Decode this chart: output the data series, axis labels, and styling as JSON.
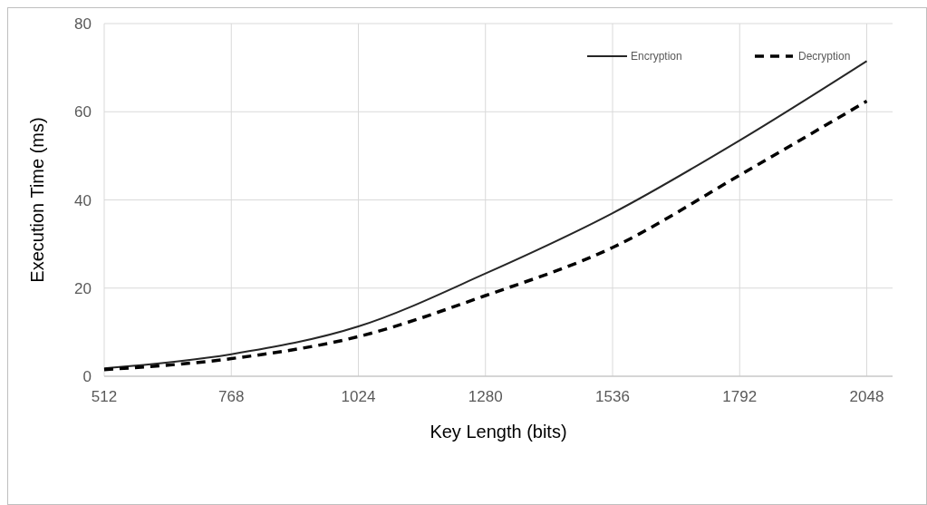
{
  "chart_data": {
    "type": "line",
    "xlabel": "Key Length (bits)",
    "ylabel": "Execution Time (ms)",
    "x": [
      512,
      768,
      1024,
      1280,
      1536,
      1792,
      2048
    ],
    "xlim": [
      512,
      2100
    ],
    "xticks": [
      512,
      768,
      1024,
      1280,
      1536,
      1792,
      2048
    ],
    "ylim": [
      0,
      80
    ],
    "yticks": [
      0,
      20,
      40,
      60,
      80
    ],
    "grid": true,
    "legend": "top right",
    "marker": "none",
    "series": [
      {
        "name": "Encryption",
        "color": "#262626",
        "line_style": "solid",
        "values": [
          1.8,
          5,
          11.3,
          23.3,
          37,
          53.5,
          71.5
        ]
      },
      {
        "name": "Decryption",
        "color": "#000000",
        "line_style": "dashed",
        "values": [
          1.5,
          4,
          9,
          18.3,
          29.2,
          45.6,
          62.4
        ]
      }
    ]
  }
}
